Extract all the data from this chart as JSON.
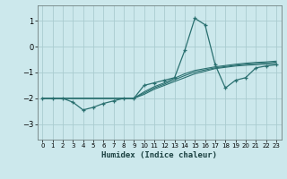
{
  "background_color": "#cce8ec",
  "grid_color": "#aaccd0",
  "line_color": "#2a7070",
  "xlabel": "Humidex (Indice chaleur)",
  "xlim": [
    -0.5,
    23.5
  ],
  "ylim": [
    -3.6,
    1.6
  ],
  "yticks": [
    -3,
    -2,
    -1,
    0,
    1
  ],
  "xticks": [
    0,
    1,
    2,
    3,
    4,
    5,
    6,
    7,
    8,
    9,
    10,
    11,
    12,
    13,
    14,
    15,
    16,
    17,
    18,
    19,
    20,
    21,
    22,
    23
  ],
  "series": [
    {
      "x": [
        0,
        1,
        2,
        3,
        4,
        5,
        6,
        7,
        8,
        9,
        10,
        11,
        12,
        13,
        14,
        15,
        16,
        17,
        18,
        19,
        20,
        21,
        22,
        23
      ],
      "y": [
        -2.0,
        -2.0,
        -2.0,
        -2.0,
        -2.0,
        -2.0,
        -2.0,
        -2.0,
        -2.0,
        -2.0,
        -1.85,
        -1.65,
        -1.5,
        -1.35,
        -1.2,
        -1.05,
        -0.95,
        -0.85,
        -0.8,
        -0.75,
        -0.72,
        -0.7,
        -0.68,
        -0.65
      ],
      "marker": false
    },
    {
      "x": [
        0,
        1,
        2,
        3,
        4,
        5,
        6,
        7,
        8,
        9,
        10,
        11,
        12,
        13,
        14,
        15,
        16,
        17,
        18,
        19,
        20,
        21,
        22,
        23
      ],
      "y": [
        -2.0,
        -2.0,
        -2.0,
        -2.0,
        -2.0,
        -2.0,
        -2.0,
        -2.0,
        -2.0,
        -2.0,
        -1.8,
        -1.6,
        -1.45,
        -1.28,
        -1.12,
        -0.98,
        -0.9,
        -0.82,
        -0.77,
        -0.72,
        -0.68,
        -0.65,
        -0.63,
        -0.6
      ],
      "marker": false
    },
    {
      "x": [
        0,
        1,
        2,
        3,
        4,
        5,
        6,
        7,
        8,
        9,
        10,
        11,
        12,
        13,
        14,
        15,
        16,
        17,
        18,
        19,
        20,
        21,
        22,
        23
      ],
      "y": [
        -2.0,
        -2.0,
        -2.0,
        -2.0,
        -2.0,
        -2.0,
        -2.0,
        -2.0,
        -2.0,
        -2.0,
        -1.75,
        -1.55,
        -1.4,
        -1.22,
        -1.05,
        -0.92,
        -0.85,
        -0.78,
        -0.73,
        -0.68,
        -0.64,
        -0.61,
        -0.59,
        -0.56
      ],
      "marker": false
    },
    {
      "x": [
        0,
        1,
        2,
        3,
        4,
        5,
        6,
        7,
        8,
        9,
        10,
        11,
        12,
        13,
        14,
        15,
        16,
        17,
        18,
        19,
        20,
        21,
        22,
        23
      ],
      "y": [
        -2.0,
        -2.0,
        -2.0,
        -2.15,
        -2.45,
        -2.35,
        -2.2,
        -2.1,
        -2.0,
        -2.0,
        -1.5,
        -1.4,
        -1.3,
        -1.2,
        -0.15,
        1.1,
        0.85,
        -0.7,
        -1.6,
        -1.3,
        -1.2,
        -0.82,
        -0.75,
        -0.7
      ],
      "marker": true
    }
  ]
}
